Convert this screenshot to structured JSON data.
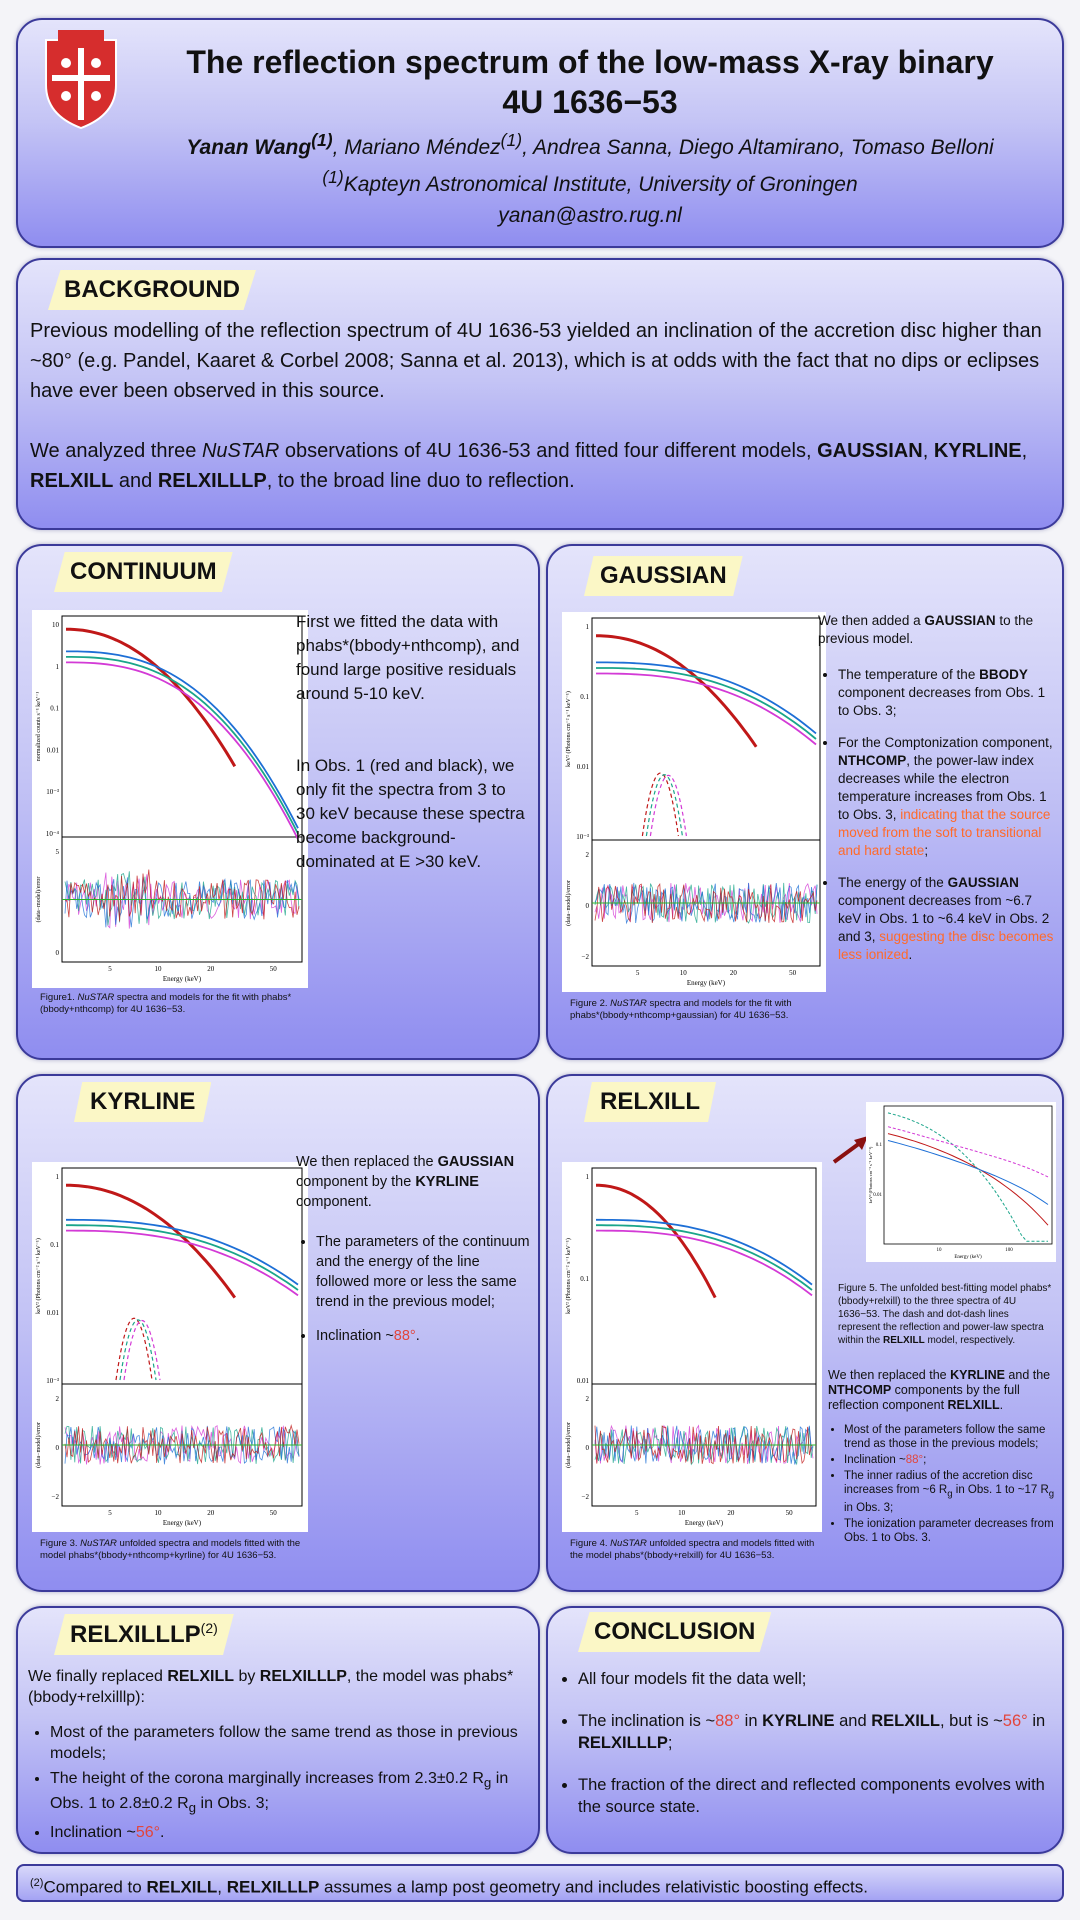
{
  "header": {
    "title_line1": "The reflection spectrum of the low-mass X-ray binary",
    "title_line2": "4U 1636−53",
    "author_first": "Yanan Wang",
    "author_first_sup": "(1)",
    "author_mid": ", Mariano Méndez",
    "author_mid_sup": "(1)",
    "author_rest": ", Andrea Sanna, Diego Altamirano, Tomaso Belloni",
    "affil_sup": "(1)",
    "affil": "Kapteyn Astronomical Institute, University of Groningen",
    "email": "yanan@astro.rug.nl",
    "logo_icon": "university-crest-icon"
  },
  "background": {
    "heading": "BACKGROUND",
    "p1": "Previous modelling of the reflection spectrum of 4U 1636-53 yielded an inclination of the accretion disc higher than ~80° (e.g. Pandel, Kaaret & Corbel 2008; Sanna et al. 2013), which is at odds with the fact that no dips or eclipses have ever been observed in this source.",
    "p2_a": "We analyzed three ",
    "p2_nustar": "NuSTAR",
    "p2_b": " observations of 4U 1636-53 and fitted four different models, ",
    "p2_m1": "GAUSSIAN",
    "p2_sep1": ", ",
    "p2_m2": "KYRLINE",
    "p2_sep2": ", ",
    "p2_m3": "RELXILL",
    "p2_and": " and ",
    "p2_m4": "RELXILLLP",
    "p2_c": ", to the broad line duo to reflection."
  },
  "continuum": {
    "heading": "CONTINUUM",
    "p1": "First we fitted the data with phabs*(bbody+nthcomp), and found large positive residuals around 5-10 keV.",
    "p2": "In Obs. 1 (red and black), we only fit the spectra from 3 to 30 keV because these spectra become background-dominated at E >30 keV.",
    "caption_a": "Figure1. ",
    "caption_nustar": "NuSTAR",
    "caption_b": " spectra and models for the fit with phabs*(bbody+nthcomp) for 4U 1636−53.",
    "ylabel_top": "normalized counts s⁻¹ keV⁻¹",
    "ylabel_bottom": "(data−model)/error",
    "xlabel": "Energy (keV)",
    "yticks_top": [
      "10",
      "1",
      "0.1",
      "0.01",
      "10⁻³",
      "10⁻⁴"
    ],
    "yticks_bottom": [
      "5",
      "0"
    ],
    "xticks": [
      "5",
      "10",
      "20",
      "50"
    ]
  },
  "gaussian": {
    "heading": "GAUSSIAN",
    "intro_a": "We then added a ",
    "intro_b": "GAUSSIAN",
    "intro_c": " to the previous model.",
    "b1_a": "The temperature of the ",
    "b1_b": "BBODY",
    "b1_c": " component decreases from Obs. 1 to Obs. 3;",
    "b2_a": "For the Comptonization component, ",
    "b2_b": "NTHCOMP",
    "b2_c": ", the power-law index decreases while the electron temperature increases from Obs. 1 to Obs. 3, ",
    "b2_d": "indicating that the source moved from the soft to transitional and hard state",
    "b2_e": ";",
    "b3_a": "The energy of the ",
    "b3_b": "GAUSSIAN",
    "b3_c": " component decreases from ~6.7 keV in Obs. 1 to ~6.4 keV in Obs. 2 and 3, ",
    "b3_d": "suggesting the disc becomes less ionized",
    "b3_e": ".",
    "caption_a": "Figure 2. ",
    "caption_nustar": "NuSTAR",
    "caption_b": " spectra and models for the fit with phabs*(bbody+nthcomp+gaussian) for 4U 1636−53.",
    "ylabel_top": "keV² (Photons cm⁻² s⁻¹ keV⁻¹)",
    "ylabel_bottom": "(data−model)/error",
    "xlabel": "Energy (keV)",
    "yticks_top": [
      "1",
      "0.1",
      "0.01",
      "10⁻³"
    ],
    "yticks_bottom": [
      "2",
      "0",
      "−2"
    ],
    "xticks": [
      "5",
      "10",
      "20",
      "50"
    ]
  },
  "kyrline": {
    "heading": "KYRLINE",
    "intro_a": "We then replaced the ",
    "intro_b": "GAUSSIAN",
    "intro_c": " component by the ",
    "intro_d": "KYRLINE",
    "intro_e": " component.",
    "b1": "The parameters of the continuum and the energy of the line followed more or less the same trend in the previous model;",
    "b2_a": "Inclination ~",
    "b2_b": "88°",
    "b2_c": ".",
    "caption_a": "Figure 3. ",
    "caption_nustar": "NuSTAR",
    "caption_b": " unfolded spectra and models fitted with the model phabs*(bbody+nthcomp+kyrline) for 4U 1636−53.",
    "ylabel_top": "keV² (Photons cm⁻² s⁻¹ keV⁻¹)",
    "ylabel_bottom": "(data−model)/error",
    "xlabel": "Energy (keV)",
    "yticks_top": [
      "1",
      "0.1",
      "0.01",
      "10⁻³"
    ],
    "yticks_bottom": [
      "2",
      "0",
      "−2"
    ],
    "xticks": [
      "5",
      "10",
      "20",
      "50"
    ]
  },
  "relxill": {
    "heading": "RELXILL",
    "fig5_a": "Figure 5. The unfolded best-fitting model phabs*(bbody+relxill) to the three spectra of 4U 1636−53. The dash and dot-dash lines represent the reflection and power-law spectra within the ",
    "fig5_b": "RELXILL",
    "fig5_c": " model, respectively.",
    "intro_a": "We then replaced the ",
    "intro_b": "KYRLINE",
    "intro_c": " and the ",
    "intro_d": "NTHCOMP",
    "intro_e": " components by the full reflection component ",
    "intro_f": "RELXILL",
    "intro_g": ".",
    "b1": "Most of the parameters follow the same trend as those in the previous models;",
    "b2_a": "Inclination ~",
    "b2_b": "88°",
    "b2_c": ";",
    "b3_a": "The inner radius of the accretion disc increases from ~6 R",
    "b3_sub1": "g",
    "b3_b": " in Obs. 1 to ~17 R",
    "b3_sub2": "g",
    "b3_c": " in Obs. 3;",
    "b4": "The ionization parameter decreases from Obs. 1 to Obs. 3.",
    "caption_a": "Figure 4. ",
    "caption_nustar": "NuSTAR",
    "caption_b": " unfolded spectra and models fitted with the model phabs*(bbody+relxill) for 4U 1636−53.",
    "ylabel_top": "keV² (Photons cm⁻² s⁻¹ keV⁻¹)",
    "ylabel_bottom": "(data−model)/error",
    "xlabel": "Energy (keV)",
    "yticks_top": [
      "1",
      "0.1",
      "0.01"
    ],
    "yticks_bottom": [
      "2",
      "0",
      "−2"
    ],
    "xticks": [
      "5",
      "10",
      "20",
      "50"
    ],
    "inset_xlabel": "Energy (keV)",
    "inset_ylabel": "keV² (Photons cm⁻² s⁻¹ keV⁻¹)",
    "inset_xticks": [
      "10",
      "100"
    ],
    "inset_yticks": [
      "0.1",
      "0.01"
    ]
  },
  "relxilllp": {
    "heading": "RELXILLLP",
    "heading_sup": "(2)",
    "intro_a": "We finally replaced ",
    "intro_b": "RELXILL",
    "intro_c": " by ",
    "intro_d": "RELXILLLP",
    "intro_e": ", the model was phabs*(bbody+relxilllp):",
    "b1": "Most of the parameters follow the same trend as those in previous models;",
    "b2_a": "The height of the corona marginally increases from 2.3±0.2 R",
    "b2_sub1": "g",
    "b2_b": " in Obs. 1 to 2.8±0.2 R",
    "b2_sub2": "g",
    "b2_c": " in Obs. 3;",
    "b3_a": "Inclination ~",
    "b3_b": "56°",
    "b3_c": "."
  },
  "conclusion": {
    "heading": "CONCLUSION",
    "b1": "All four models fit the data well;",
    "b2_a": "The inclination is ~",
    "b2_b": "88°",
    "b2_c": " in ",
    "b2_d": "KYRLINE",
    "b2_e": " and ",
    "b2_f": "RELXILL",
    "b2_g": ", but is ~",
    "b2_h": "56°",
    "b2_i": " in ",
    "b2_j": "RELXILLLP",
    "b2_k": ";",
    "b3": "The fraction of the direct and reflected components evolves with the source state."
  },
  "footer": {
    "sup": "(2)",
    "a": "Compared to ",
    "b": "RELXILL",
    "c": ", ",
    "d": "RELXILLLP",
    "e": " assumes a lamp post geometry and includes relativistic boosting effects."
  },
  "colors": {
    "accent_red": "#e2453c",
    "accent_orange": "#ff6a2a",
    "tag_bg": "#fbf7c6",
    "border": "#3b3a9a"
  }
}
